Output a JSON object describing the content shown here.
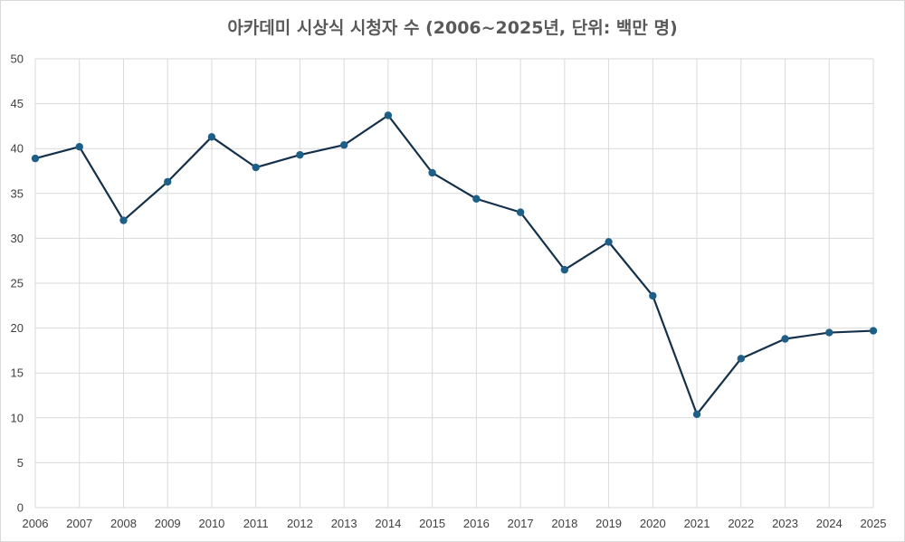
{
  "chart_data": {
    "type": "line",
    "title": "아카데미 시상식 시청자 수 (2006~2025년, 단위: 백만 명)",
    "xlabel": "",
    "ylabel": "",
    "x": [
      "2006",
      "2007",
      "2008",
      "2009",
      "2010",
      "2011",
      "2012",
      "2013",
      "2014",
      "2015",
      "2016",
      "2017",
      "2018",
      "2019",
      "2020",
      "2021",
      "2022",
      "2023",
      "2024",
      "2025"
    ],
    "series": [
      {
        "values": [
          38.9,
          40.2,
          32.0,
          36.3,
          41.3,
          37.9,
          39.3,
          40.4,
          43.7,
          37.3,
          34.4,
          32.9,
          26.5,
          29.6,
          23.6,
          10.4,
          16.6,
          18.8,
          19.5,
          19.7
        ]
      }
    ],
    "ylim": [
      0,
      50
    ],
    "yticks": [
      0,
      5,
      10,
      15,
      20,
      25,
      30,
      35,
      40,
      45,
      50
    ],
    "grid": true,
    "legend": "none",
    "colors": {
      "line": "#14304a",
      "marker": "#1d5f87",
      "grid": "#d9d9d9",
      "axis_text": "#404040",
      "title": "#595959"
    }
  }
}
